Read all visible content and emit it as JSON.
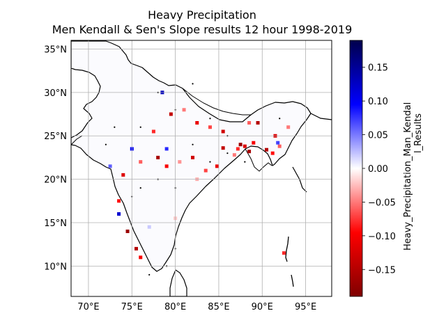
{
  "title": {
    "line1": "Heavy Precipitation",
    "line2": "Men Kendall & Sen's Slope results 12 hour 1998-2019"
  },
  "map": {
    "region": "India",
    "lon_range": [
      68,
      98
    ],
    "lat_range": [
      6.5,
      36
    ],
    "grid": true,
    "x_ticks": [
      "70°E",
      "75°E",
      "80°E",
      "85°E",
      "90°E",
      "95°E"
    ],
    "y_ticks": [
      "10°N",
      "15°N",
      "20°N",
      "25°N",
      "30°N",
      "35°N"
    ]
  },
  "colorbar": {
    "label": "Heavy_Precipitation_Man_Kendall_Results",
    "label_line1": "Heavy_Precipitation_Man_Kendal",
    "label_line2": "l_Results",
    "colormap": "seismic_r",
    "vmin": -0.19,
    "vmax": 0.19,
    "ticks": [
      "0.15",
      "0.10",
      "0.05",
      "0.00",
      "−0.05",
      "−0.10",
      "−0.15"
    ],
    "colors": {
      "max": "#00004c",
      "blue": "#0000ff",
      "zero": "#ffffff",
      "red": "#ff0000",
      "min": "#7f0000"
    }
  },
  "chart_data": {
    "type": "heatmap",
    "description_units": "lon (°E), lat (°N), trend value",
    "cells": [
      [
        87.5,
        24.0,
        -0.17
      ],
      [
        88.0,
        23.8,
        -0.12
      ],
      [
        87.2,
        23.5,
        -0.08
      ],
      [
        88.5,
        23.2,
        -0.16
      ],
      [
        86.8,
        22.8,
        -0.05
      ],
      [
        89.0,
        24.2,
        -0.1
      ],
      [
        90.5,
        23.4,
        -0.15
      ],
      [
        91.2,
        23.0,
        -0.09
      ],
      [
        92.0,
        23.8,
        -0.06
      ],
      [
        85.5,
        23.6,
        -0.14
      ],
      [
        84.8,
        21.5,
        -0.11
      ],
      [
        83.5,
        21.0,
        -0.07
      ],
      [
        82.0,
        22.5,
        -0.13
      ],
      [
        80.5,
        22.0,
        -0.04
      ],
      [
        79.0,
        21.5,
        -0.1
      ],
      [
        78.0,
        22.5,
        -0.16
      ],
      [
        76.0,
        22.0,
        -0.06
      ],
      [
        74.0,
        20.5,
        -0.12
      ],
      [
        73.5,
        17.5,
        -0.09
      ],
      [
        74.5,
        14.0,
        -0.17
      ],
      [
        75.5,
        12.0,
        -0.15
      ],
      [
        76.0,
        11.0,
        -0.1
      ],
      [
        77.5,
        25.5,
        -0.08
      ],
      [
        79.5,
        27.5,
        -0.14
      ],
      [
        81.0,
        28.0,
        -0.05
      ],
      [
        82.5,
        26.5,
        -0.11
      ],
      [
        84.0,
        26.0,
        -0.07
      ],
      [
        85.5,
        25.5,
        -0.13
      ],
      [
        88.5,
        26.5,
        -0.06
      ],
      [
        89.5,
        26.5,
        -0.15
      ],
      [
        91.5,
        25.0,
        -0.12
      ],
      [
        93.0,
        26.0,
        -0.05
      ],
      [
        92.5,
        11.5,
        -0.08
      ],
      [
        73.5,
        16.0,
        0.12
      ],
      [
        75.0,
        23.5,
        0.1
      ],
      [
        79.0,
        23.5,
        0.08
      ],
      [
        78.5,
        30.0,
        0.13
      ],
      [
        72.5,
        21.5,
        0.06
      ],
      [
        91.8,
        24.2,
        0.07
      ],
      [
        82.5,
        20.0,
        -0.03
      ],
      [
        80.0,
        15.5,
        -0.02
      ],
      [
        77.0,
        14.5,
        0.02
      ]
    ],
    "dots": [
      [
        72,
        24
      ],
      [
        76,
        26
      ],
      [
        78,
        30
      ],
      [
        80,
        28
      ],
      [
        82,
        24
      ],
      [
        84,
        22
      ],
      [
        86,
        23
      ],
      [
        88,
        22
      ],
      [
        80,
        19
      ],
      [
        78,
        20
      ],
      [
        76,
        19
      ],
      [
        80,
        12
      ],
      [
        79,
        10
      ],
      [
        77,
        9
      ],
      [
        75,
        18
      ],
      [
        73,
        26
      ],
      [
        82,
        31
      ],
      [
        92,
        27
      ],
      [
        84,
        27
      ],
      [
        86,
        25
      ]
    ]
  }
}
